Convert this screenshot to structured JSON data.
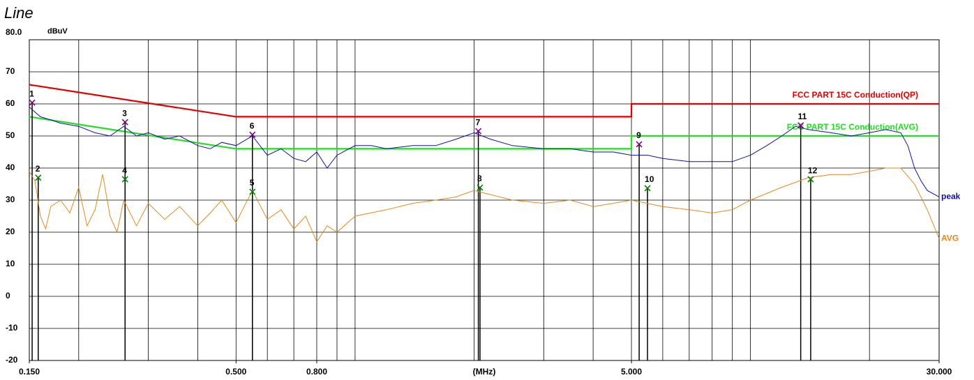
{
  "chart_data": {
    "type": "line",
    "title": "Line",
    "ylabel": "dBuV",
    "xlabel": "(MHz)",
    "xscale": "log",
    "xlim": [
      0.15,
      30
    ],
    "ylim": [
      -20,
      80
    ],
    "xticks": [
      {
        "value": 0.15,
        "label": "0.150"
      },
      {
        "value": 0.5,
        "label": "0.500"
      },
      {
        "value": 0.8,
        "label": "0.800"
      },
      {
        "value": 5,
        "label": "5.000"
      },
      {
        "value": 30,
        "label": "30.000"
      }
    ],
    "yticks": [
      {
        "value": 80,
        "label": "80.0"
      },
      70,
      60,
      50,
      40,
      30,
      20,
      10,
      0,
      -10,
      -20
    ],
    "grid": true,
    "limits": [
      {
        "name": "FCC PART 15C  Conduction(QP)",
        "color": "#e00000",
        "x": [
          0.15,
          0.5,
          5,
          5,
          30
        ],
        "values": [
          66,
          56,
          56,
          60,
          60
        ]
      },
      {
        "name": "FCC PART 15C  Conduction(AVG)",
        "color": "#22dd22",
        "x": [
          0.15,
          0.5,
          5,
          5,
          30
        ],
        "values": [
          56,
          46,
          46,
          50,
          50
        ]
      }
    ],
    "series": [
      {
        "name": "peak",
        "color": "#1010a0",
        "marker_color": "#800080",
        "x": [
          0.15,
          0.16,
          0.17,
          0.18,
          0.2,
          0.22,
          0.24,
          0.26,
          0.28,
          0.3,
          0.33,
          0.36,
          0.4,
          0.43,
          0.46,
          0.5,
          0.55,
          0.6,
          0.65,
          0.7,
          0.75,
          0.8,
          0.85,
          0.9,
          1.0,
          1.1,
          1.2,
          1.4,
          1.6,
          1.8,
          2.0,
          2.2,
          2.5,
          3.0,
          3.5,
          4.0,
          4.5,
          5.0,
          5.5,
          6.0,
          7,
          8,
          9,
          10,
          11,
          12,
          13,
          14,
          16,
          18,
          20,
          22,
          24,
          25,
          26,
          27,
          28,
          30
        ],
        "values": [
          59,
          56,
          55,
          54,
          53,
          51,
          50,
          53,
          50,
          51,
          49,
          50,
          47,
          46,
          48,
          47,
          50,
          44,
          46,
          43,
          42,
          45,
          40,
          44,
          47,
          47,
          46,
          47,
          47,
          49,
          51,
          49,
          47,
          46,
          46,
          45,
          45,
          44,
          44,
          43,
          42,
          42,
          42,
          44,
          47,
          50,
          53,
          52,
          51,
          50,
          51,
          52,
          51,
          47,
          40,
          36,
          33,
          31
        ],
        "markers": [
          {
            "label": "1",
            "x": 0.1525,
            "y": 60.4
          },
          {
            "label": "3",
            "x": 0.262,
            "y": 54.3
          },
          {
            "label": "6",
            "x": 0.55,
            "y": 50.4
          },
          {
            "label": "7",
            "x": 2.05,
            "y": 51.5
          },
          {
            "label": "9",
            "x": 5.23,
            "y": 47.4
          },
          {
            "label": "11",
            "x": 13.4,
            "y": 53.3
          }
        ]
      },
      {
        "name": "AVG",
        "color": "#e08a1e",
        "marker_color": "#008000",
        "x": [
          0.15,
          0.155,
          0.16,
          0.165,
          0.17,
          0.18,
          0.19,
          0.2,
          0.21,
          0.22,
          0.23,
          0.24,
          0.25,
          0.26,
          0.28,
          0.3,
          0.33,
          0.36,
          0.4,
          0.43,
          0.46,
          0.5,
          0.55,
          0.6,
          0.65,
          0.7,
          0.75,
          0.8,
          0.85,
          0.9,
          1.0,
          1.2,
          1.4,
          1.6,
          1.8,
          2.0,
          2.5,
          3,
          3.5,
          4,
          4.5,
          5,
          6,
          7,
          8,
          9,
          10,
          12,
          14,
          16,
          18,
          20,
          22,
          24,
          26,
          28,
          30
        ],
        "values": [
          39,
          36,
          25,
          21,
          28,
          30,
          26,
          34,
          22,
          27,
          38,
          25,
          20,
          30,
          22,
          29,
          24,
          28,
          22,
          26,
          30,
          23,
          33,
          24,
          27,
          21,
          25,
          17,
          22,
          20,
          25,
          27,
          29,
          30,
          31,
          33,
          30,
          29,
          30,
          28,
          29,
          30,
          28,
          27,
          26,
          27,
          30,
          34,
          37,
          38,
          38,
          39,
          40,
          40,
          35,
          27,
          18
        ],
        "markers": [
          {
            "label": "2",
            "x": 0.158,
            "y": 37
          },
          {
            "label": "4",
            "x": 0.262,
            "y": 36.5
          },
          {
            "label": "5",
            "x": 0.55,
            "y": 32.6
          },
          {
            "label": "8",
            "x": 2.07,
            "y": 33.9
          },
          {
            "label": "10",
            "x": 5.49,
            "y": 33.7
          },
          {
            "label": "12",
            "x": 14.2,
            "y": 36.5
          }
        ]
      }
    ]
  }
}
